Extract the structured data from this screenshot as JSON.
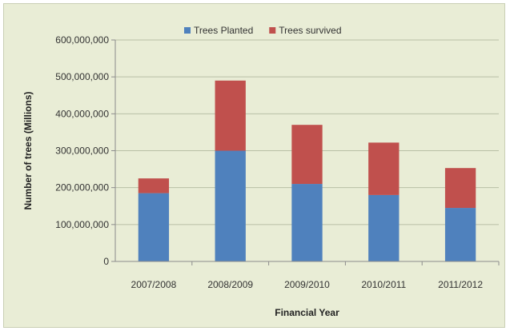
{
  "chart_data": {
    "type": "bar",
    "stacked": true,
    "categories": [
      "2007/2008",
      "2008/2009",
      "2009/2010",
      "2010/2011",
      "2011/2012"
    ],
    "series": [
      {
        "name": "Trees Planted",
        "color": "#4f81bd",
        "values": [
          185000000,
          300000000,
          210000000,
          180000000,
          145000000
        ]
      },
      {
        "name": "Trees survived",
        "color": "#c0504d",
        "values": [
          40000000,
          190000000,
          160000000,
          142000000,
          108000000
        ]
      }
    ],
    "title": "",
    "xlabel": "Financial Year",
    "ylabel": "Number of trees (Millions)",
    "ylim": [
      0,
      600000000
    ],
    "yticks": [
      0,
      100000000,
      200000000,
      300000000,
      400000000,
      500000000,
      600000000
    ],
    "ytick_labels": [
      "0",
      "100,000,000",
      "200,000,000",
      "300,000,000",
      "400,000,000",
      "500,000,000",
      "600,000,000"
    ],
    "grid": true,
    "legend_position": "top"
  }
}
